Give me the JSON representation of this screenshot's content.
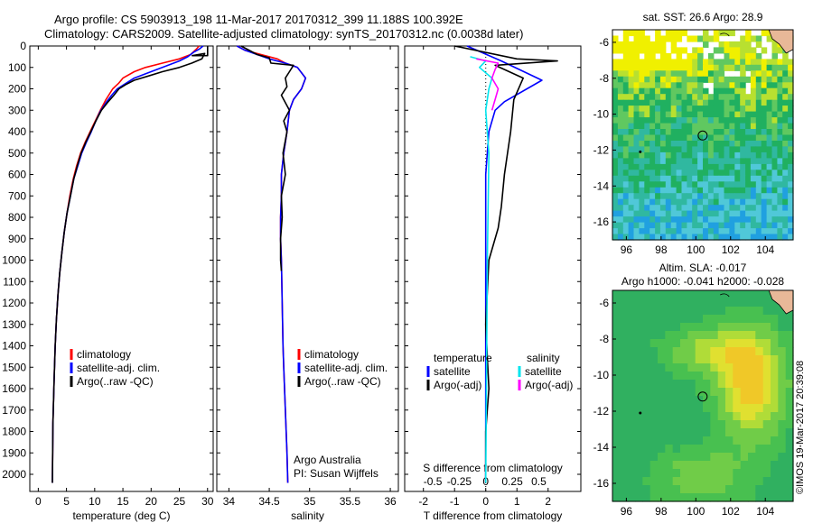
{
  "header": {
    "line1": "Argo profile: CS 5903913_198 11-Mar-2017 20170312_399 11.188S 100.392E",
    "line2": "Climatology: CARS2009. Satellite-adjusted climatology: synTS_20170312.nc (0.0038d later)"
  },
  "credit": "©IMOS 19-Mar-2017 20:39:08",
  "colors": {
    "climatology": "#ff0000",
    "satellite": "#0000ff",
    "argo": "#000000",
    "salinity_satellite": "#00e5ee",
    "salinity_argo": "#ff00ff"
  },
  "chart_data": [
    {
      "type": "line",
      "xlabel": "temperature (deg C)",
      "ylabel": "",
      "xlim": [
        -1.5,
        31
      ],
      "ylim": [
        2080,
        0
      ],
      "xticks": [
        0,
        5,
        10,
        15,
        20,
        25,
        30
      ],
      "yticks": [
        0,
        100,
        200,
        300,
        400,
        500,
        600,
        700,
        800,
        900,
        1000,
        1100,
        1200,
        1300,
        1400,
        1500,
        1600,
        1700,
        1800,
        1900,
        2000
      ],
      "legend": [
        "climatology",
        "satellite-adj. clim.",
        "Argo(..raw -QC)"
      ],
      "legend_position": "lower-right",
      "series": [
        {
          "name": "climatology",
          "color": "#ff0000",
          "x": [
            28.5,
            28,
            27,
            25,
            22,
            19,
            17,
            15,
            14.2,
            13.2,
            12,
            11,
            10.1,
            9.2,
            8.3,
            7.5,
            6.8,
            6.2,
            5.6,
            5.1,
            4.6,
            4.2,
            3.8,
            3.5,
            3.2,
            3,
            2.8,
            2.6,
            2.5
          ],
          "y": [
            0,
            15,
            40,
            60,
            80,
            100,
            120,
            150,
            175,
            200,
            250,
            300,
            350,
            400,
            450,
            500,
            560,
            620,
            700,
            780,
            870,
            960,
            1060,
            1160,
            1280,
            1400,
            1560,
            1760,
            2040
          ]
        },
        {
          "name": "satellite-adj. clim.",
          "color": "#0000ff",
          "x": [
            29.2,
            28.5,
            27.5,
            26.5,
            25,
            23,
            21,
            19,
            17,
            15.5,
            14,
            13,
            12,
            11,
            10.2,
            9.4,
            8.5,
            7.7,
            7,
            6.3,
            5.7,
            5.1,
            4.6,
            4.2,
            3.8,
            3.5,
            3.2,
            3,
            2.8,
            2.6,
            2.5
          ],
          "y": [
            0,
            15,
            30,
            50,
            70,
            90,
            110,
            130,
            150,
            175,
            200,
            230,
            265,
            305,
            350,
            400,
            450,
            500,
            560,
            620,
            700,
            780,
            870,
            960,
            1060,
            1160,
            1280,
            1400,
            1560,
            1760,
            2040
          ]
        },
        {
          "name": "Argo(..raw -QC)",
          "color": "#000000",
          "x": [
            30,
            30,
            27.3,
            29.5,
            29,
            27.2,
            25,
            22,
            19.5,
            17,
            15.5,
            14.3,
            13.4,
            12.4,
            11.2,
            10.2,
            9.3,
            8.4,
            7.6,
            6.9,
            6.3,
            5.7,
            5.1,
            4.6,
            4.2,
            3.8,
            3.5,
            3.2,
            3,
            2.8,
            2.6,
            2.5
          ],
          "y": [
            0,
            45,
            45,
            35,
            60,
            80,
            100,
            120,
            140,
            160,
            180,
            200,
            230,
            260,
            300,
            350,
            400,
            450,
            500,
            560,
            620,
            700,
            780,
            870,
            960,
            1060,
            1160,
            1280,
            1400,
            1560,
            1760,
            2040
          ]
        }
      ]
    },
    {
      "type": "line",
      "xlabel": "salinity",
      "ylabel": "",
      "xlim": [
        33.85,
        36.1
      ],
      "ylim": [
        2080,
        0
      ],
      "xticks": [
        34,
        34.5,
        35,
        35.5,
        36
      ],
      "legend": [
        "climatology",
        "satellite-adj. clim.",
        "Argo(..raw -QC)"
      ],
      "legend_position": "lower-right",
      "annotations": [
        "Argo Australia",
        "PI: Susan Wijffels"
      ],
      "series": [
        {
          "name": "climatology",
          "color": "#ff0000",
          "x": [
            34.1,
            34.2,
            34.4,
            34.6,
            34.7,
            34.85,
            34.95,
            34.9,
            34.8,
            34.75,
            34.72,
            34.68,
            34.65,
            34.65,
            34.64,
            34.64,
            34.65,
            34.66,
            34.67,
            34.68,
            34.7,
            34.72,
            34.73
          ],
          "y": [
            0,
            20,
            40,
            60,
            80,
            100,
            150,
            200,
            250,
            300,
            400,
            500,
            600,
            700,
            800,
            900,
            1000,
            1200,
            1400,
            1500,
            1700,
            1900,
            2040
          ]
        },
        {
          "name": "satellite-adj. clim.",
          "color": "#0000ff",
          "x": [
            34.1,
            34.2,
            34.35,
            34.5,
            34.7,
            34.85,
            34.95,
            34.9,
            34.8,
            34.75,
            34.72,
            34.68,
            34.65,
            34.65,
            34.64,
            34.64,
            34.65,
            34.66,
            34.67,
            34.68,
            34.7,
            34.72,
            34.73
          ],
          "y": [
            0,
            20,
            40,
            60,
            80,
            100,
            150,
            200,
            250,
            300,
            400,
            500,
            600,
            700,
            800,
            900,
            1000,
            1200,
            1400,
            1500,
            1700,
            1900,
            2040
          ]
        },
        {
          "name": "Argo(..raw -QC)",
          "color": "#000000",
          "x": [
            34.15,
            34.35,
            34.5,
            34.52,
            34.8,
            34.75,
            34.7,
            34.72,
            34.65,
            34.75,
            34.68,
            34.72,
            34.67,
            34.7,
            34.65,
            34.66,
            34.64,
            34.64,
            34.65
          ],
          "y": [
            0,
            40,
            55,
            80,
            90,
            120,
            150,
            190,
            230,
            300,
            350,
            400,
            500,
            600,
            700,
            800,
            900,
            1000,
            1050
          ]
        }
      ]
    },
    {
      "type": "line",
      "xlabel": "T difference from climatology",
      "top_xlabel": "S difference from climatology",
      "xlim": [
        -2.6,
        3.05
      ],
      "ylim": [
        2080,
        0
      ],
      "xticks": [
        -2,
        -1,
        0,
        1,
        2
      ],
      "top_xticks": [
        "-0.5",
        "-0.25",
        "0",
        "0.25",
        "0.5"
      ],
      "legend_titles": [
        "temperature",
        "salinity"
      ],
      "legend": [
        "satellite",
        "Argo(-adj)",
        "satellite",
        "Argo(-adj)"
      ],
      "legend_position": "lower-right",
      "series": [
        {
          "color": "#0000ff",
          "x": [
            -0.6,
            0.5,
            1.8,
            0.6,
            0.3,
            0.1,
            0,
            0,
            0,
            0
          ],
          "y": [
            0,
            70,
            160,
            260,
            300,
            400,
            600,
            1000,
            1500,
            2040
          ]
        },
        {
          "color": "#000000",
          "x": [
            -1,
            1,
            2.3,
            0.3,
            1.2,
            0.9,
            0.8,
            0.6,
            0.5,
            0.4,
            0.1,
            0,
            0.1,
            0,
            0
          ],
          "y": [
            0,
            60,
            70,
            90,
            150,
            250,
            400,
            600,
            750,
            850,
            1000,
            1300,
            1600,
            1800,
            2040
          ]
        },
        {
          "color": "#00e5ee",
          "x": [
            -0.5,
            0,
            -0.2,
            0.2,
            0.1,
            0,
            0.1,
            0.05,
            0
          ],
          "y": [
            50,
            70,
            100,
            150,
            200,
            300,
            500,
            1000,
            2040
          ]
        },
        {
          "color": "#ff00ff",
          "x": [
            -0.3,
            0.4,
            0.3,
            0.2,
            0.4,
            0.3,
            0.2
          ],
          "y": [
            60,
            80,
            110,
            150,
            200,
            250,
            300
          ]
        }
      ]
    },
    {
      "type": "heatmap",
      "title": "sat. SST: 26.6  Argo: 28.9",
      "xticks": [
        96,
        98,
        100,
        102,
        104
      ],
      "yticks": [
        -6,
        -8,
        -10,
        -12,
        -14,
        -16
      ],
      "xlim": [
        95.2,
        105.6
      ],
      "ylim": [
        -17,
        -5.3
      ],
      "marker": {
        "lon": 100.392,
        "lat": -11.188
      }
    },
    {
      "type": "heatmap",
      "title_line1": "Altim. SLA: -0.017",
      "title_line2": "Argo h1000: -0.041 h2000: -0.028",
      "xticks": [
        96,
        98,
        100,
        102,
        104
      ],
      "yticks": [
        -6,
        -8,
        -10,
        -12,
        -14,
        -16
      ],
      "xlim": [
        95.2,
        105.6
      ],
      "ylim": [
        -17,
        -5.3
      ],
      "marker": {
        "lon": 100.392,
        "lat": -11.188
      }
    }
  ]
}
